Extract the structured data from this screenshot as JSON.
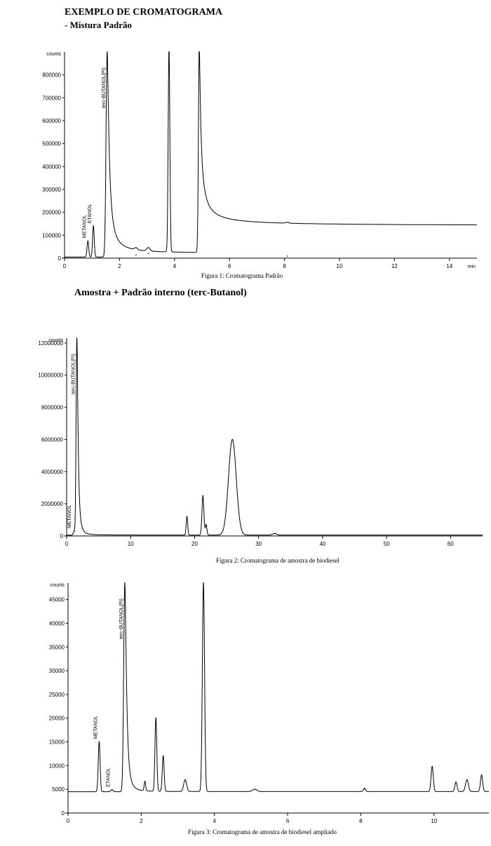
{
  "header": {
    "title": "EXEMPLO DE CROMATOGRAMA",
    "subtitle": "- Mistura Padrão",
    "section2_title": "Amostra + Padrão interno (terc-Butanol)"
  },
  "colors": {
    "ink": "#000000",
    "background": "#ffffff"
  },
  "chart_data": [
    {
      "id": "fig1",
      "type": "line",
      "caption": "Figura 1: Cromatograma Padrão",
      "ylabel": "counts",
      "xlabel": "min",
      "xlim": [
        0,
        15
      ],
      "ylim": [
        0,
        900000
      ],
      "x_ticks": [
        0,
        2,
        4,
        6,
        8,
        10,
        12,
        14
      ],
      "x_tick_labels": [
        "0",
        "2",
        "4",
        "6",
        "8",
        "10",
        "12",
        "14"
      ],
      "y_ticks": [
        100000,
        200000,
        300000,
        400000,
        500000,
        600000,
        700000,
        800000
      ],
      "y_tick_labels": [
        "100000",
        "200000",
        "300000",
        "400000",
        "500000",
        "600000",
        "700000",
        "800000"
      ],
      "baseline": 5000,
      "peaks": [
        {
          "x": 0.85,
          "y": 75000,
          "w": 0.03,
          "tail": 0
        },
        {
          "x": 1.05,
          "y": 140000,
          "w": 0.03,
          "tail": 0
        },
        {
          "x": 1.55,
          "y": 900000,
          "w": 0.04,
          "tail": 0.35
        },
        {
          "x": 2.6,
          "y": 14000,
          "w": 0.05,
          "tail": 0
        },
        {
          "x": 3.05,
          "y": 20000,
          "w": 0.06,
          "tail": 0
        },
        {
          "x": 3.8,
          "y": 900000,
          "w": 0.03,
          "tail": 0
        },
        {
          "x": 4.9,
          "y": 900000,
          "w": 0.03,
          "tail": 0.5
        },
        {
          "x": 8.1,
          "y": 9000,
          "w": 0.06,
          "tail": 0
        }
      ],
      "peak_labels": [
        {
          "x": 0.85,
          "text": "METANOL"
        },
        {
          "x": 1.05,
          "text": "ETANOL"
        },
        {
          "x": 1.55,
          "text": "terc-BUTANOL(PI)"
        }
      ]
    },
    {
      "id": "fig2",
      "type": "line",
      "caption": "Figura 2: Cromatograma de amostra de biodiesel",
      "ylabel": "counts",
      "xlabel": "",
      "xlim": [
        0,
        65
      ],
      "ylim": [
        0,
        12300000
      ],
      "x_ticks": [
        0,
        10,
        20,
        30,
        40,
        50,
        60
      ],
      "x_tick_labels": [
        "0",
        "10",
        "20",
        "30",
        "40",
        "50",
        "60"
      ],
      "y_ticks": [
        2000000,
        4000000,
        6000000,
        8000000,
        10000000,
        12000000
      ],
      "y_tick_labels": [
        "2000000",
        "4000000",
        "6000000",
        "8000000",
        "10000000",
        "12000000"
      ],
      "baseline": 50000,
      "peaks": [
        {
          "x": 1.2,
          "y": 300000,
          "w": 0.15,
          "tail": 0
        },
        {
          "x": 1.6,
          "y": 12300000,
          "w": 0.12,
          "tail": 0.25
        },
        {
          "x": 18.8,
          "y": 1200000,
          "w": 0.12,
          "tail": 0
        },
        {
          "x": 21.3,
          "y": 2500000,
          "w": 0.15,
          "tail": 0
        },
        {
          "x": 21.8,
          "y": 700000,
          "w": 0.12,
          "tail": 0
        },
        {
          "x": 25.9,
          "y": 6000000,
          "w": 0.6,
          "tail": 0
        },
        {
          "x": 32.5,
          "y": 150000,
          "w": 0.3,
          "tail": 0
        }
      ],
      "peak_labels": [
        {
          "x": 1.0,
          "text": "METANOL"
        },
        {
          "x": 1.6,
          "text": "terc-BUTANOL(PI)"
        }
      ]
    },
    {
      "id": "fig3",
      "type": "line",
      "caption": "Figura 3: Cromatograma de amostra de biodiesel ampliado",
      "ylabel": "counts",
      "xlabel": "",
      "xlim": [
        0,
        11.5
      ],
      "ylim": [
        0,
        48500
      ],
      "x_ticks": [
        0,
        2,
        4,
        6,
        8,
        10
      ],
      "x_tick_labels": [
        "0",
        "2",
        "4",
        "6",
        "8",
        "10"
      ],
      "y_ticks": [
        5000,
        10000,
        15000,
        20000,
        25000,
        30000,
        35000,
        40000,
        45000
      ],
      "y_tick_labels": [
        "5000",
        "10000",
        "15000",
        "20000",
        "25000",
        "30000",
        "35000",
        "40000",
        "45000"
      ],
      "baseline": 4500,
      "peaks": [
        {
          "x": 0.85,
          "y": 15000,
          "w": 0.025,
          "tail": 0
        },
        {
          "x": 1.2,
          "y": 4900,
          "w": 0.03,
          "tail": 0
        },
        {
          "x": 1.55,
          "y": 48500,
          "w": 0.03,
          "tail": 0.25
        },
        {
          "x": 2.1,
          "y": 6500,
          "w": 0.02,
          "tail": 0
        },
        {
          "x": 2.4,
          "y": 20000,
          "w": 0.025,
          "tail": 0
        },
        {
          "x": 2.6,
          "y": 12000,
          "w": 0.025,
          "tail": 0
        },
        {
          "x": 3.2,
          "y": 7000,
          "w": 0.04,
          "tail": 0
        },
        {
          "x": 3.7,
          "y": 48500,
          "w": 0.03,
          "tail": 0
        },
        {
          "x": 5.1,
          "y": 5000,
          "w": 0.06,
          "tail": 0
        },
        {
          "x": 8.1,
          "y": 5200,
          "w": 0.03,
          "tail": 0
        },
        {
          "x": 9.95,
          "y": 9800,
          "w": 0.03,
          "tail": 0
        },
        {
          "x": 10.6,
          "y": 6500,
          "w": 0.03,
          "tail": 0
        },
        {
          "x": 10.9,
          "y": 7000,
          "w": 0.04,
          "tail": 0
        },
        {
          "x": 11.3,
          "y": 8000,
          "w": 0.03,
          "tail": 0
        }
      ],
      "peak_labels": [
        {
          "x": 0.85,
          "text": "METANOL"
        },
        {
          "x": 1.2,
          "text": "ETANOL"
        },
        {
          "x": 1.55,
          "text": "terc-BUTANOL(PI)"
        }
      ]
    }
  ]
}
